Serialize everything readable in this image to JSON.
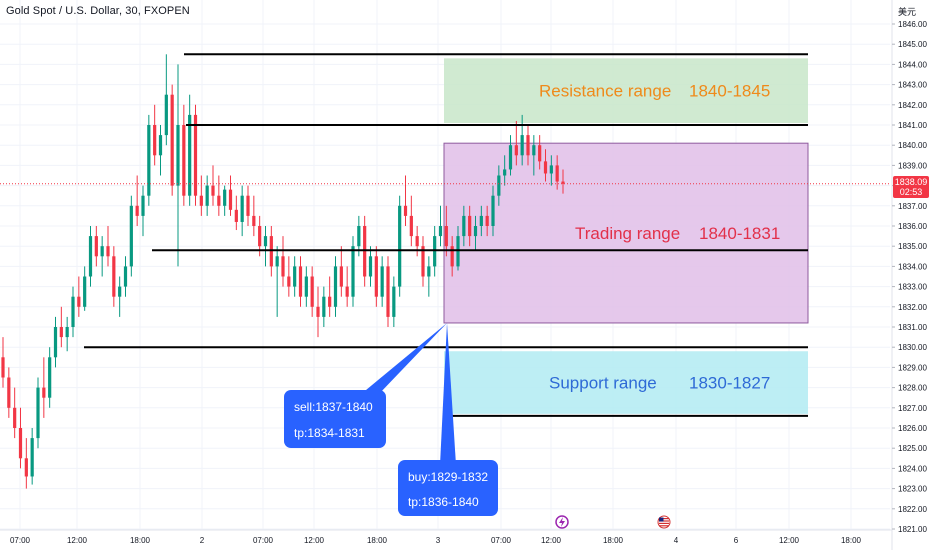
{
  "header": {
    "symbol_title": "Gold Spot / U.S. Dollar, 30, FXOPEN",
    "currency": "美元"
  },
  "last_price": {
    "value": "1838.09",
    "countdown": "02:53"
  },
  "colors": {
    "up": "#089981",
    "down": "#f23645",
    "resistance_zone": "#c8e6c9",
    "trading_zone": "#e1bee7",
    "support_zone": "#b2ebf2",
    "callout": "#2962ff",
    "resistance_text": "#ef8a1a",
    "trading_text": "#e2304a",
    "support_text": "#2e6ad6"
  },
  "chart_data": {
    "type": "candlestick",
    "y_axis": {
      "min": 1821,
      "max": 1846,
      "ticks": [
        "1846.00",
        "1845.00",
        "1844.00",
        "1843.00",
        "1842.00",
        "1841.00",
        "1840.00",
        "1839.00",
        "1838.00",
        "1837.00",
        "1836.00",
        "1835.00",
        "1834.00",
        "1833.00",
        "1832.00",
        "1831.00",
        "1830.00",
        "1829.00",
        "1828.00",
        "1827.00",
        "1826.00",
        "1825.00",
        "1824.00",
        "1823.00",
        "1822.00",
        "1821.00"
      ]
    },
    "x_axis": {
      "ticks": [
        "07:00",
        "12:00",
        "18:00",
        "2",
        "07:00",
        "12:00",
        "18:00",
        "3",
        "07:00",
        "12:00",
        "18:00",
        "4",
        "6",
        "12:00",
        "18:00"
      ]
    },
    "horizontal_levels": [
      1844.5,
      1841.0,
      1834.8,
      1830.0,
      1826.6
    ],
    "zones": [
      {
        "name": "Resistance range",
        "label": "Resistance range",
        "value_label": "1840-1845",
        "top": 1844.3,
        "bottom": 1841.1
      },
      {
        "name": "Trading range",
        "label": "Trading range",
        "value_label": "1840-1831",
        "top": 1840.1,
        "bottom": 1831.2
      },
      {
        "name": "Support range",
        "label": "Support range",
        "value_label": "1830-1827",
        "top": 1829.8,
        "bottom": 1826.7
      }
    ],
    "callouts": [
      {
        "lines": [
          "sell:1837-1840",
          "tp:1834-1831"
        ]
      },
      {
        "lines": [
          "buy:1829-1832",
          "tp:1836-1840"
        ]
      }
    ],
    "candles": [
      {
        "o": 1829.5,
        "h": 1830.5,
        "l": 1828.0,
        "c": 1828.5
      },
      {
        "o": 1828.5,
        "h": 1829.0,
        "l": 1826.5,
        "c": 1827.0
      },
      {
        "o": 1827.0,
        "h": 1828.0,
        "l": 1825.5,
        "c": 1826.0
      },
      {
        "o": 1826.0,
        "h": 1827.0,
        "l": 1824.0,
        "c": 1824.5
      },
      {
        "o": 1824.5,
        "h": 1825.5,
        "l": 1823.0,
        "c": 1823.6
      },
      {
        "o": 1823.6,
        "h": 1826.0,
        "l": 1823.2,
        "c": 1825.5
      },
      {
        "o": 1825.5,
        "h": 1828.5,
        "l": 1825.0,
        "c": 1828.0
      },
      {
        "o": 1828.0,
        "h": 1829.5,
        "l": 1826.5,
        "c": 1827.5
      },
      {
        "o": 1827.5,
        "h": 1830.0,
        "l": 1827.0,
        "c": 1829.5
      },
      {
        "o": 1829.5,
        "h": 1831.5,
        "l": 1829.0,
        "c": 1831.0
      },
      {
        "o": 1831.0,
        "h": 1832.0,
        "l": 1830.0,
        "c": 1830.5
      },
      {
        "o": 1830.5,
        "h": 1831.5,
        "l": 1829.8,
        "c": 1831.0
      },
      {
        "o": 1831.0,
        "h": 1833.0,
        "l": 1830.5,
        "c": 1832.5
      },
      {
        "o": 1832.5,
        "h": 1833.5,
        "l": 1831.5,
        "c": 1832.0
      },
      {
        "o": 1832.0,
        "h": 1834.0,
        "l": 1831.8,
        "c": 1833.5
      },
      {
        "o": 1833.5,
        "h": 1836.0,
        "l": 1833.0,
        "c": 1835.5
      },
      {
        "o": 1835.5,
        "h": 1836.0,
        "l": 1834.0,
        "c": 1834.5
      },
      {
        "o": 1834.5,
        "h": 1835.5,
        "l": 1833.5,
        "c": 1835.0
      },
      {
        "o": 1835.0,
        "h": 1836.0,
        "l": 1834.0,
        "c": 1834.5
      },
      {
        "o": 1834.5,
        "h": 1835.0,
        "l": 1832.0,
        "c": 1832.5
      },
      {
        "o": 1832.5,
        "h": 1833.5,
        "l": 1831.5,
        "c": 1833.0
      },
      {
        "o": 1833.0,
        "h": 1834.5,
        "l": 1832.5,
        "c": 1834.0
      },
      {
        "o": 1834.0,
        "h": 1837.5,
        "l": 1833.5,
        "c": 1837.0
      },
      {
        "o": 1837.0,
        "h": 1838.5,
        "l": 1836.0,
        "c": 1836.5
      },
      {
        "o": 1836.5,
        "h": 1838.0,
        "l": 1835.5,
        "c": 1837.5
      },
      {
        "o": 1837.5,
        "h": 1841.5,
        "l": 1837.0,
        "c": 1841.0
      },
      {
        "o": 1841.0,
        "h": 1842.0,
        "l": 1839.0,
        "c": 1839.5
      },
      {
        "o": 1839.5,
        "h": 1841.0,
        "l": 1838.5,
        "c": 1840.5
      },
      {
        "o": 1840.5,
        "h": 1844.5,
        "l": 1840.0,
        "c": 1842.5
      },
      {
        "o": 1842.5,
        "h": 1843.0,
        "l": 1837.5,
        "c": 1838.0
      },
      {
        "o": 1838.0,
        "h": 1844.0,
        "l": 1834.0,
        "c": 1841.0
      },
      {
        "o": 1841.0,
        "h": 1842.0,
        "l": 1837.0,
        "c": 1837.5
      },
      {
        "o": 1837.5,
        "h": 1842.5,
        "l": 1837.0,
        "c": 1841.5
      },
      {
        "o": 1841.5,
        "h": 1842.0,
        "l": 1837.0,
        "c": 1837.5
      },
      {
        "o": 1837.5,
        "h": 1838.5,
        "l": 1836.5,
        "c": 1837.0
      },
      {
        "o": 1837.0,
        "h": 1838.5,
        "l": 1836.5,
        "c": 1838.0
      },
      {
        "o": 1838.0,
        "h": 1839.0,
        "l": 1837.0,
        "c": 1837.5
      },
      {
        "o": 1837.5,
        "h": 1838.5,
        "l": 1836.5,
        "c": 1837.0
      },
      {
        "o": 1837.0,
        "h": 1838.0,
        "l": 1836.5,
        "c": 1837.8
      },
      {
        "o": 1837.8,
        "h": 1838.5,
        "l": 1836.5,
        "c": 1836.8
      },
      {
        "o": 1836.8,
        "h": 1837.5,
        "l": 1835.8,
        "c": 1836.2
      },
      {
        "o": 1836.2,
        "h": 1838.0,
        "l": 1835.5,
        "c": 1837.5
      },
      {
        "o": 1837.5,
        "h": 1838.0,
        "l": 1836.0,
        "c": 1836.5
      },
      {
        "o": 1836.5,
        "h": 1837.5,
        "l": 1835.5,
        "c": 1836.0
      },
      {
        "o": 1836.0,
        "h": 1836.5,
        "l": 1834.5,
        "c": 1835.0
      },
      {
        "o": 1835.0,
        "h": 1836.0,
        "l": 1834.0,
        "c": 1835.5
      },
      {
        "o": 1835.5,
        "h": 1836.0,
        "l": 1833.5,
        "c": 1834.0
      },
      {
        "o": 1834.0,
        "h": 1835.0,
        "l": 1831.5,
        "c": 1834.5
      },
      {
        "o": 1834.5,
        "h": 1835.5,
        "l": 1833.0,
        "c": 1833.5
      },
      {
        "o": 1833.5,
        "h": 1834.5,
        "l": 1832.5,
        "c": 1833.0
      },
      {
        "o": 1833.0,
        "h": 1834.5,
        "l": 1832.5,
        "c": 1834.0
      },
      {
        "o": 1834.0,
        "h": 1834.5,
        "l": 1832.0,
        "c": 1832.5
      },
      {
        "o": 1832.5,
        "h": 1834.0,
        "l": 1832.0,
        "c": 1833.5
      },
      {
        "o": 1833.5,
        "h": 1834.0,
        "l": 1831.5,
        "c": 1832.0
      },
      {
        "o": 1832.0,
        "h": 1833.0,
        "l": 1830.5,
        "c": 1831.5
      },
      {
        "o": 1831.5,
        "h": 1833.0,
        "l": 1831.0,
        "c": 1832.5
      },
      {
        "o": 1832.5,
        "h": 1833.5,
        "l": 1831.5,
        "c": 1832.0
      },
      {
        "o": 1832.0,
        "h": 1834.5,
        "l": 1831.5,
        "c": 1834.0
      },
      {
        "o": 1834.0,
        "h": 1835.0,
        "l": 1832.5,
        "c": 1833.0
      },
      {
        "o": 1833.0,
        "h": 1834.0,
        "l": 1832.0,
        "c": 1832.5
      },
      {
        "o": 1832.5,
        "h": 1835.5,
        "l": 1832.0,
        "c": 1835.0
      },
      {
        "o": 1835.0,
        "h": 1836.5,
        "l": 1834.5,
        "c": 1836.0
      },
      {
        "o": 1836.0,
        "h": 1836.5,
        "l": 1833.0,
        "c": 1833.5
      },
      {
        "o": 1833.5,
        "h": 1835.0,
        "l": 1833.0,
        "c": 1834.5
      },
      {
        "o": 1834.5,
        "h": 1835.0,
        "l": 1832.0,
        "c": 1832.5
      },
      {
        "o": 1832.5,
        "h": 1834.5,
        "l": 1832.0,
        "c": 1834.0
      },
      {
        "o": 1834.0,
        "h": 1834.5,
        "l": 1831.0,
        "c": 1831.5
      },
      {
        "o": 1831.5,
        "h": 1833.5,
        "l": 1831.0,
        "c": 1833.0
      },
      {
        "o": 1833.0,
        "h": 1837.5,
        "l": 1832.5,
        "c": 1837.0
      },
      {
        "o": 1837.0,
        "h": 1838.5,
        "l": 1836.0,
        "c": 1836.5
      },
      {
        "o": 1836.5,
        "h": 1837.5,
        "l": 1835.0,
        "c": 1835.5
      },
      {
        "o": 1835.5,
        "h": 1836.0,
        "l": 1834.5,
        "c": 1835.0
      },
      {
        "o": 1835.0,
        "h": 1835.5,
        "l": 1833.0,
        "c": 1833.5
      },
      {
        "o": 1833.5,
        "h": 1834.5,
        "l": 1832.5,
        "c": 1834.0
      },
      {
        "o": 1834.0,
        "h": 1836.0,
        "l": 1833.5,
        "c": 1835.5
      },
      {
        "o": 1835.5,
        "h": 1837.0,
        "l": 1835.0,
        "c": 1836.0
      },
      {
        "o": 1836.0,
        "h": 1837.0,
        "l": 1834.5,
        "c": 1835.0
      },
      {
        "o": 1835.0,
        "h": 1835.5,
        "l": 1833.5,
        "c": 1834.0
      },
      {
        "o": 1834.0,
        "h": 1836.0,
        "l": 1833.8,
        "c": 1835.5
      },
      {
        "o": 1835.5,
        "h": 1837.0,
        "l": 1835.0,
        "c": 1836.5
      },
      {
        "o": 1836.5,
        "h": 1837.0,
        "l": 1835.0,
        "c": 1835.5
      },
      {
        "o": 1835.5,
        "h": 1836.5,
        "l": 1834.8,
        "c": 1836.0
      },
      {
        "o": 1836.0,
        "h": 1837.0,
        "l": 1835.5,
        "c": 1836.5
      },
      {
        "o": 1836.5,
        "h": 1837.0,
        "l": 1835.5,
        "c": 1836.0
      },
      {
        "o": 1836.0,
        "h": 1838.0,
        "l": 1835.5,
        "c": 1837.5
      },
      {
        "o": 1837.5,
        "h": 1839.0,
        "l": 1837.0,
        "c": 1838.5
      },
      {
        "o": 1838.5,
        "h": 1839.5,
        "l": 1838.0,
        "c": 1838.8
      },
      {
        "o": 1838.8,
        "h": 1840.5,
        "l": 1838.5,
        "c": 1840.0
      },
      {
        "o": 1840.0,
        "h": 1841.2,
        "l": 1839.0,
        "c": 1839.5
      },
      {
        "o": 1839.5,
        "h": 1841.5,
        "l": 1839.0,
        "c": 1840.5
      },
      {
        "o": 1840.5,
        "h": 1841.0,
        "l": 1839.0,
        "c": 1839.5
      },
      {
        "o": 1839.5,
        "h": 1840.5,
        "l": 1838.5,
        "c": 1840.0
      },
      {
        "o": 1840.0,
        "h": 1840.5,
        "l": 1838.8,
        "c": 1839.2
      },
      {
        "o": 1839.2,
        "h": 1839.8,
        "l": 1838.2,
        "c": 1838.6
      },
      {
        "o": 1838.6,
        "h": 1839.5,
        "l": 1838.0,
        "c": 1839.0
      },
      {
        "o": 1839.0,
        "h": 1839.5,
        "l": 1837.8,
        "c": 1838.2
      },
      {
        "o": 1838.2,
        "h": 1838.8,
        "l": 1837.6,
        "c": 1838.09
      }
    ]
  }
}
